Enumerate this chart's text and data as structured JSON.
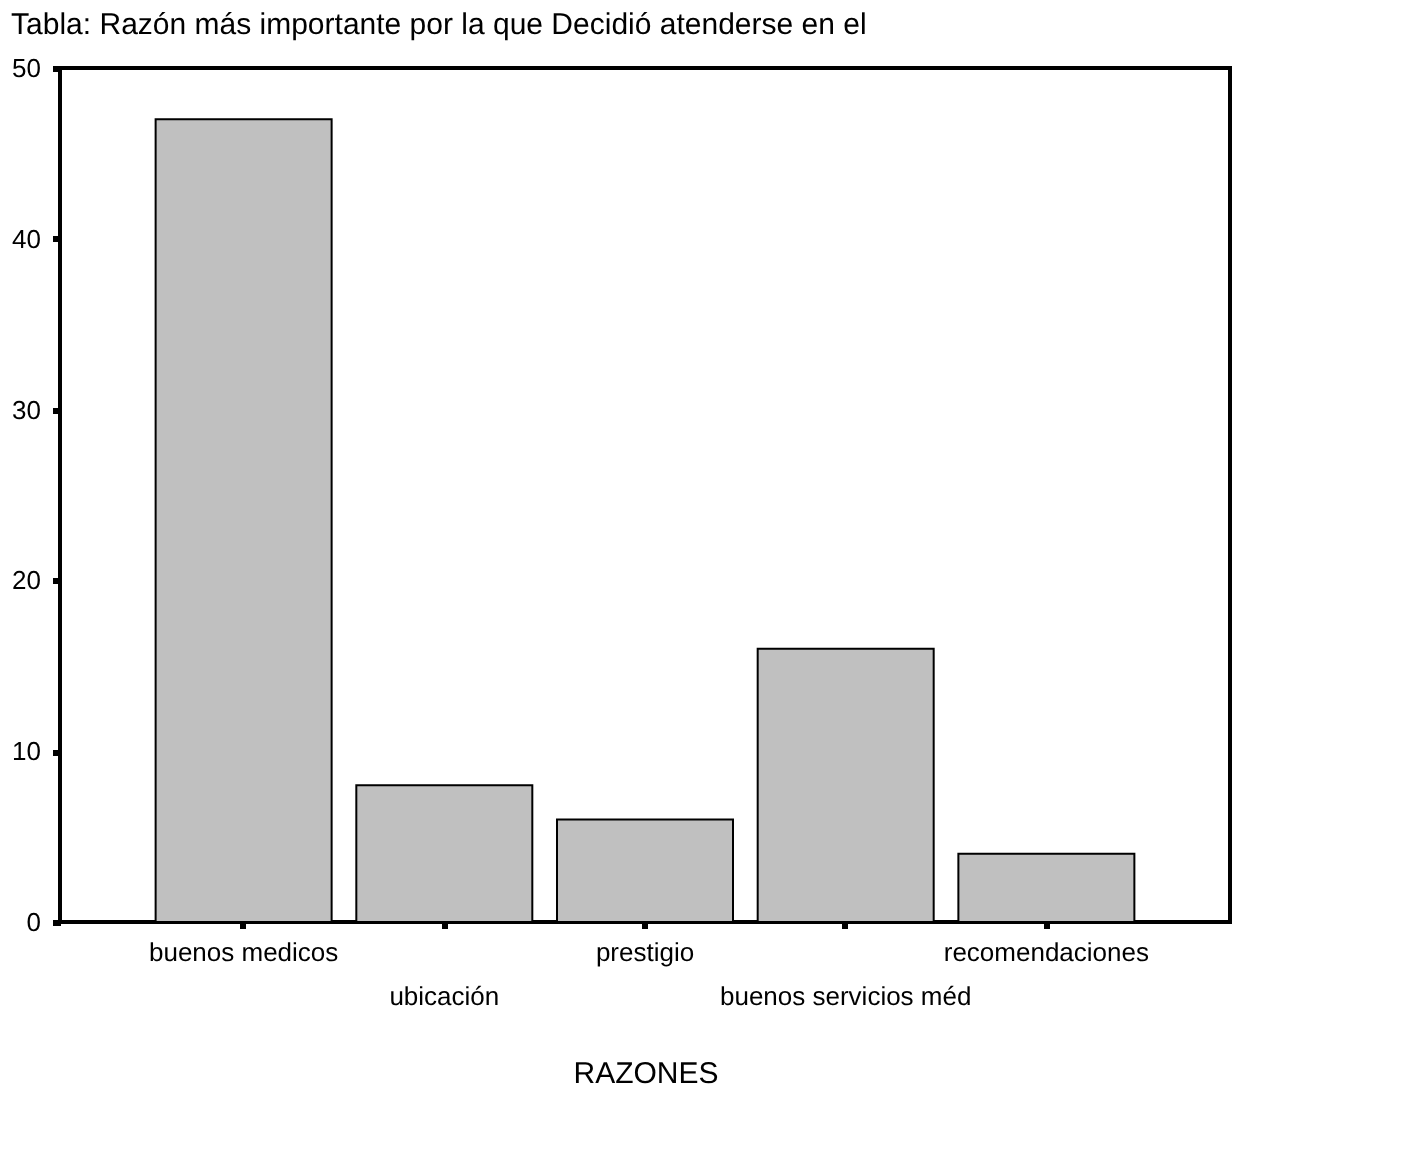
{
  "chart_data": {
    "type": "bar",
    "title": "Tabla: Razón más importante por la que Decidió atenderse en el",
    "xlabel": "RAZONES",
    "categories": [
      "buenos medicos",
      "ubicación",
      "prestigio",
      "buenos servicios méd",
      "recomendaciones"
    ],
    "values": [
      47,
      8,
      6,
      16,
      4
    ],
    "color": "#c0c0c0",
    "ylim": [
      0,
      50
    ],
    "yticks": [
      0,
      10,
      20,
      30,
      40,
      50
    ],
    "grid": false
  }
}
